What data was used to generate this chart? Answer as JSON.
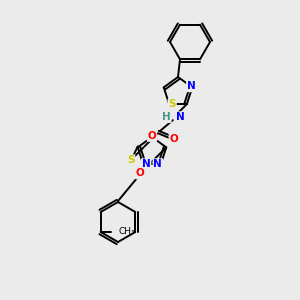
{
  "background_color": "#ebebeb",
  "bond_color": "#000000",
  "atom_colors": {
    "N": "#0000ff",
    "O": "#ff0000",
    "S": "#cccc00",
    "H": "#4a9a8a",
    "C": "#000000"
  },
  "figsize": [
    3.0,
    3.0
  ],
  "dpi": 100
}
